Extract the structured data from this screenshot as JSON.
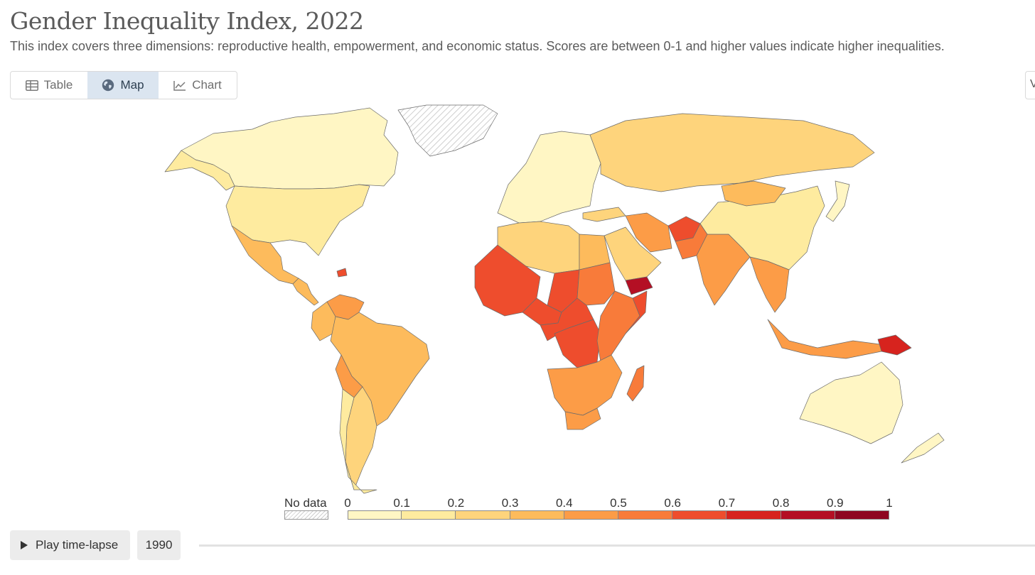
{
  "header": {
    "title": "Gender Inequality Index, 2022",
    "subtitle": "This index covers three dimensions: reproductive health, empowerment, and economic status. Scores are between 0-1 and higher values indicate higher inequalities."
  },
  "tabs": [
    {
      "label": "Table",
      "icon": "table-icon",
      "active": false
    },
    {
      "label": "Map",
      "icon": "globe-icon",
      "active": true
    },
    {
      "label": "Chart",
      "icon": "line-chart-icon",
      "active": false
    }
  ],
  "right_button_glyph": "V",
  "legend": {
    "no_data_label": "No data",
    "ticks": [
      "0",
      "0.1",
      "0.2",
      "0.3",
      "0.4",
      "0.5",
      "0.6",
      "0.7",
      "0.8",
      "0.9",
      "1"
    ],
    "colors": [
      "#fff6c4",
      "#feeb9f",
      "#fed47c",
      "#fdbb5c",
      "#fc9c47",
      "#f87b3a",
      "#ee4d2d",
      "#d7231e",
      "#b40f24",
      "#8e0621"
    ],
    "no_data_color": "#d8d8d8"
  },
  "regions": [
    {
      "name": "Canada",
      "value": 0.07
    },
    {
      "name": "Alaska",
      "value": 0.16
    },
    {
      "name": "United States",
      "value": 0.18
    },
    {
      "name": "Mexico",
      "value": 0.35
    },
    {
      "name": "Central America",
      "value": 0.38
    },
    {
      "name": "Haiti",
      "value": 0.63
    },
    {
      "name": "Venezuela",
      "value": 0.49
    },
    {
      "name": "Colombia",
      "value": 0.38
    },
    {
      "name": "Brazil",
      "value": 0.39
    },
    {
      "name": "Bolivia",
      "value": 0.41
    },
    {
      "name": "Argentina",
      "value": 0.29
    },
    {
      "name": "Chile",
      "value": 0.19
    },
    {
      "name": "Greenland",
      "value": null
    },
    {
      "name": "Europe",
      "value": 0.08
    },
    {
      "name": "Russia",
      "value": 0.2
    },
    {
      "name": "Turkey",
      "value": 0.26
    },
    {
      "name": "North Africa",
      "value": 0.27
    },
    {
      "name": "Egypt",
      "value": 0.39
    },
    {
      "name": "Iran",
      "value": 0.45
    },
    {
      "name": "Saudi Arabia",
      "value": 0.23
    },
    {
      "name": "Yemen",
      "value": 0.82
    },
    {
      "name": "Afghanistan",
      "value": 0.66
    },
    {
      "name": "Pakistan",
      "value": 0.52
    },
    {
      "name": "India",
      "value": 0.44
    },
    {
      "name": "China",
      "value": 0.19
    },
    {
      "name": "Mongolia",
      "value": 0.3
    },
    {
      "name": "Southeast Asia",
      "value": 0.42
    },
    {
      "name": "Indonesia",
      "value": 0.44
    },
    {
      "name": "Papua New Guinea",
      "value": 0.72
    },
    {
      "name": "Australia",
      "value": 0.06
    },
    {
      "name": "New Zealand",
      "value": 0.09
    },
    {
      "name": "Japan",
      "value": 0.08
    },
    {
      "name": "West Sahel",
      "value": 0.62
    },
    {
      "name": "Chad",
      "value": 0.65
    },
    {
      "name": "Nigeria",
      "value": 0.68
    },
    {
      "name": "Sudan",
      "value": 0.54
    },
    {
      "name": "Central Africa",
      "value": 0.6
    },
    {
      "name": "DR Congo",
      "value": 0.6
    },
    {
      "name": "East Africa",
      "value": 0.55
    },
    {
      "name": "Somalia",
      "value": 0.67
    },
    {
      "name": "Southern Africa",
      "value": 0.47
    },
    {
      "name": "South Africa",
      "value": 0.4
    },
    {
      "name": "Madagascar",
      "value": 0.55
    }
  ],
  "timeline": {
    "play_label": "Play time-lapse",
    "start_year": "1990"
  }
}
